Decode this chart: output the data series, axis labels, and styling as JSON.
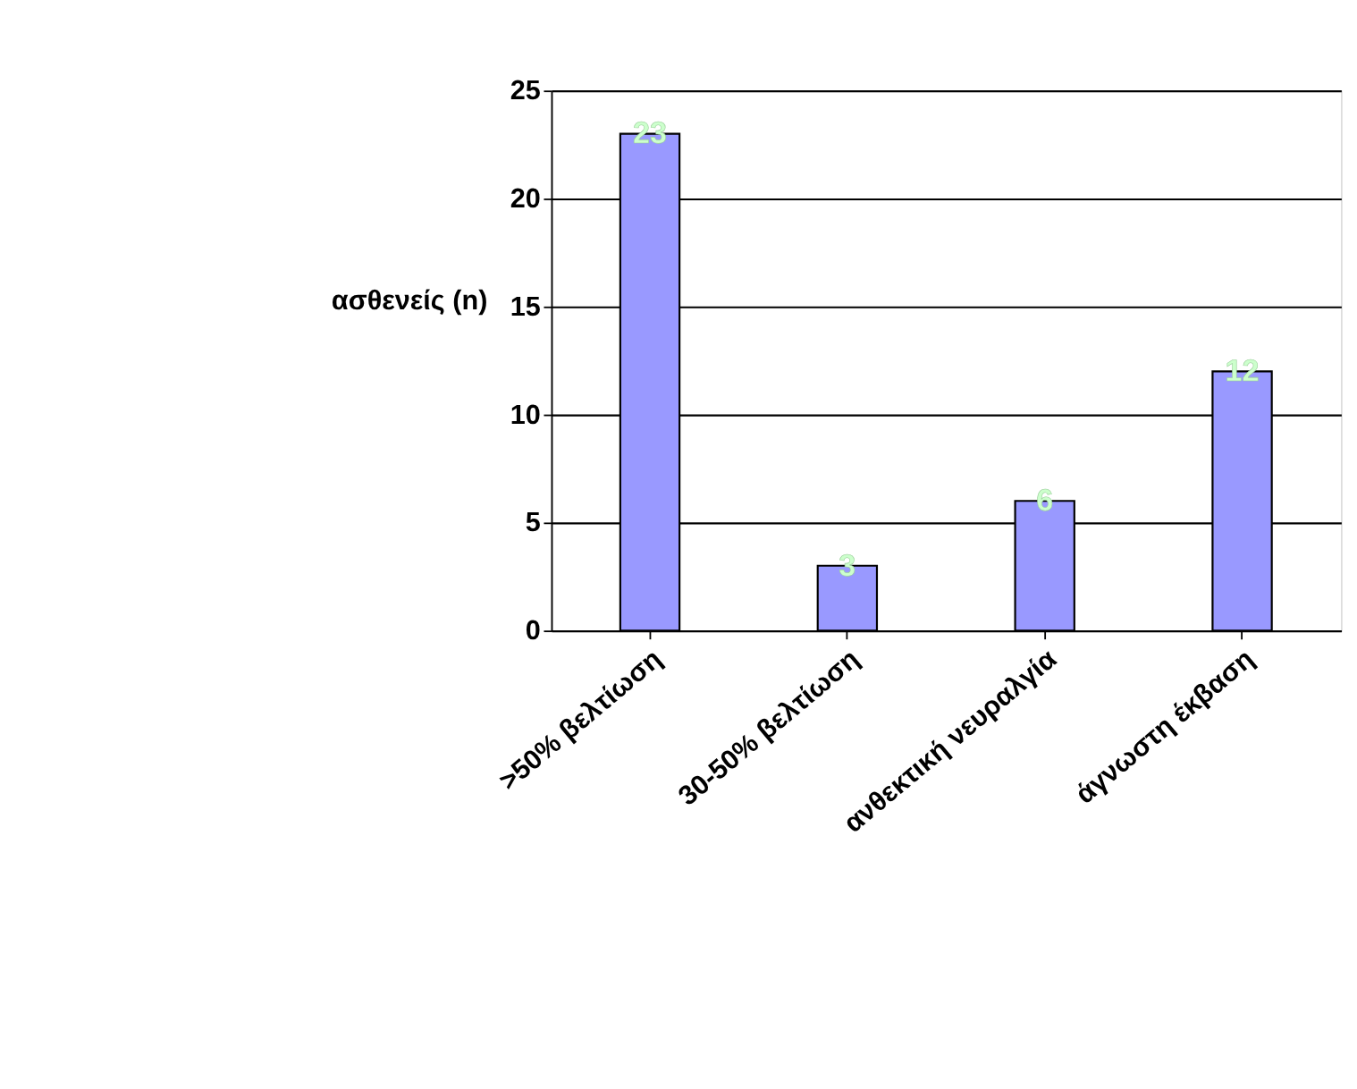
{
  "chart_data": {
    "type": "bar",
    "categories": [
      ">50% βελτίωση",
      "30-50% βελτίωση",
      "ανθεκτική νευραλγία",
      "άγνωστη έκβαση"
    ],
    "values": [
      23,
      3,
      6,
      12
    ],
    "color": "#9999ff",
    "ylabel": "ασθενείς (n)",
    "ylim": [
      0,
      25
    ],
    "yticks": [
      0,
      5,
      10,
      15,
      20,
      25
    ],
    "grid": "y",
    "data_labels": true
  }
}
